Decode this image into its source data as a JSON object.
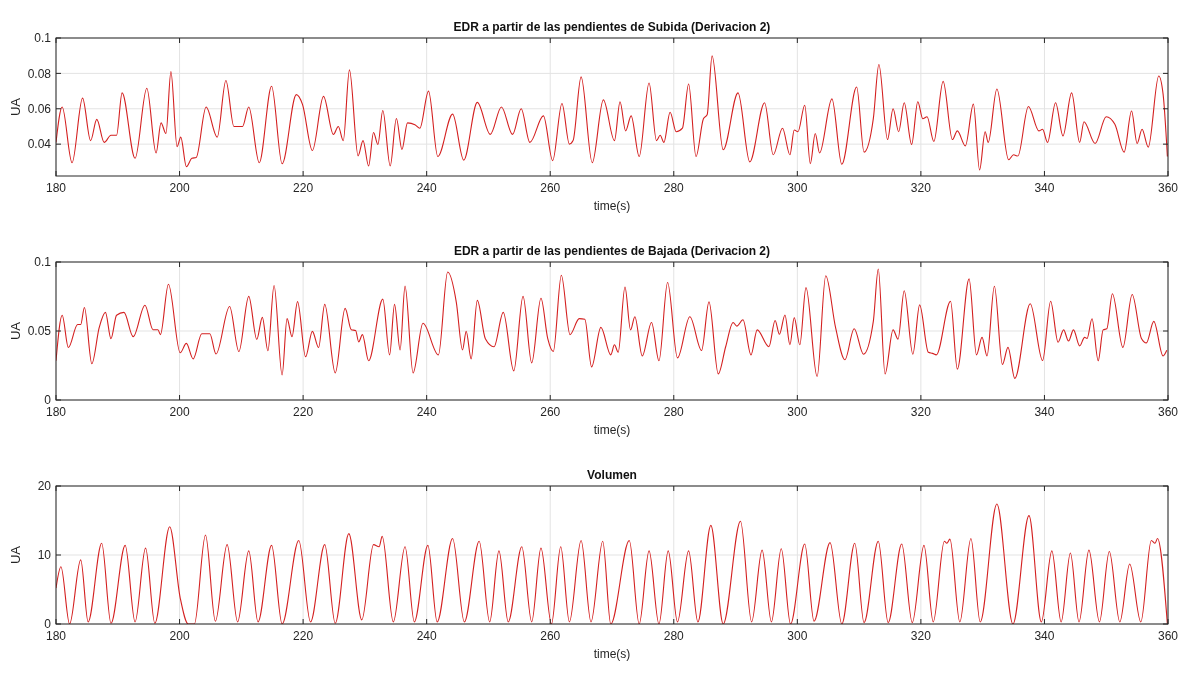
{
  "chart_data": [
    {
      "type": "line",
      "title": "EDR a partir de las pendientes de Subida (Derivacion 2)",
      "xlabel": "time(s)",
      "ylabel": "UA",
      "xlim": [
        180,
        360
      ],
      "xticks": [
        180,
        200,
        220,
        240,
        260,
        280,
        300,
        320,
        340,
        360
      ],
      "ylim": [
        0.022,
        0.1
      ],
      "yticks": [
        0.04,
        0.06,
        0.08,
        0.1
      ],
      "grid": true,
      "series": [
        {
          "color": "#d42020",
          "x": [
            180,
            181,
            182.6,
            184.3,
            185.6,
            186.6,
            187.8,
            188.9,
            189.8,
            190.7,
            192.8,
            194.7,
            196.2,
            197,
            197.8,
            198.6,
            199.6,
            200.2,
            201.1,
            202,
            202.7,
            204.3,
            206.1,
            207.5,
            208.8,
            210.2,
            211.2,
            212.9,
            214.9,
            216.6,
            218.9,
            219.9,
            221.5,
            223.3,
            224.9,
            225.7,
            226.5,
            227.5,
            228.9,
            229.7,
            230.6,
            231.4,
            232.1,
            232.9,
            234.1,
            235.1,
            236,
            236.9,
            238.1,
            238.9,
            240.3,
            241.8,
            244.2,
            246,
            248.2,
            250.3,
            252.1,
            253.9,
            255.3,
            256.7,
            258.9,
            260.4,
            261.9,
            263.1,
            263.7,
            265,
            266.8,
            268.6,
            270.4,
            271.3,
            272.2,
            273.1,
            274.4,
            276,
            277.2,
            277.8,
            278.4,
            279.4,
            280.4,
            281.4,
            282.4,
            283.6,
            284.8,
            285.4,
            286.2,
            287.2,
            288,
            288.7,
            290.4,
            292.3,
            294.7,
            296.1,
            297.6,
            298.8,
            299.5,
            300.1,
            301.2,
            302.1,
            302.9,
            303.6,
            305.6,
            307.2,
            309.6,
            310.8,
            312.3,
            313.2,
            314.6,
            315.5,
            316.4,
            317.3,
            318.5,
            319.5,
            320.3,
            321,
            322.1,
            323.6,
            325.1,
            325.9,
            327.2,
            328.5,
            329.5,
            330.4,
            330.9,
            332.3,
            334.2,
            335,
            335.7,
            337.4,
            339.1,
            339.7,
            340.5,
            341.8,
            343,
            344.4,
            345.7,
            346.4,
            348.2,
            350,
            351.4,
            352.9,
            354.1,
            355,
            355.8,
            356.8,
            358.5,
            359.2,
            359.9
          ],
          "values": [
            0.041,
            0.061,
            0.0295,
            0.066,
            0.042,
            0.054,
            0.041,
            0.045,
            0.045,
            0.069,
            0.032,
            0.0716,
            0.035,
            0.052,
            0.046,
            0.081,
            0.0386,
            0.044,
            0.0273,
            0.032,
            0.0325,
            0.061,
            0.044,
            0.076,
            0.05,
            0.05,
            0.061,
            0.0295,
            0.0727,
            0.0289,
            0.068,
            0.0625,
            0.0364,
            0.067,
            0.0455,
            0.05,
            0.042,
            0.082,
            0.0334,
            0.042,
            0.0277,
            0.0466,
            0.0398,
            0.059,
            0.0277,
            0.0545,
            0.037,
            0.052,
            0.051,
            0.049,
            0.07,
            0.033,
            0.057,
            0.031,
            0.0636,
            0.0455,
            0.061,
            0.0455,
            0.06,
            0.041,
            0.056,
            0.0307,
            0.063,
            0.04,
            0.042,
            0.078,
            0.0295,
            0.065,
            0.042,
            0.064,
            0.0475,
            0.056,
            0.033,
            0.0746,
            0.042,
            0.045,
            0.041,
            0.058,
            0.047,
            0.049,
            0.074,
            0.033,
            0.0544,
            0.0566,
            0.0899,
            null,
            0.0368,
            null,
            0.069,
            0.03,
            0.0634,
            0.034,
            0.049,
            0.034,
            0.048,
            0.047,
            0.062,
            0.029,
            0.046,
            0.035,
            0.0656,
            0.0286,
            0.0723,
            0.0355,
            0.0544,
            0.085,
            0.0426,
            0.06,
            0.047,
            0.0634,
            0.0398,
            0.064,
            0.0544,
            0.0555,
            0.0415,
            0.0755,
            0.0426,
            0.0475,
            0.039,
            0.0626,
            0.0254,
            0.047,
            0.041,
            0.0712,
            0.0312,
            0.034,
            0.0333,
            0.0613,
            0.0475,
            0.0484,
            0.041,
            0.0634,
            0.0447,
            0.069,
            0.041,
            0.0527,
            0.0404,
            0.0555,
            0.0512,
            0.0355,
            0.0587,
            0.0404,
            0.0484,
            0.0383,
            0.0785,
            0.0684,
            0.033
          ]
        }
      ]
    },
    {
      "type": "line",
      "title": "EDR a partir de las pendientes de Bajada (Derivacion 2)",
      "xlabel": "time(s)",
      "ylabel": "UA",
      "xlim": [
        180,
        360
      ],
      "xticks": [
        180,
        200,
        220,
        240,
        260,
        280,
        300,
        320,
        340,
        360
      ],
      "ylim": [
        0,
        0.1
      ],
      "yticks": [
        0,
        0.05,
        0.1
      ],
      "grid": true,
      "series": [
        {
          "color": "#d42020",
          "x": [
            180,
            181,
            182,
            183.5,
            184,
            184.6,
            185.8,
            187,
            188,
            188.9,
            189.8,
            191,
            192.5,
            194.4,
            195.7,
            196.5,
            196.9,
            198.2,
            200.1,
            201.1,
            202.2,
            203.6,
            204.9,
            205.9,
            208.1,
            209.6,
            211.2,
            212.5,
            213.4,
            214.3,
            215.3,
            216.6,
            217.4,
            218.2,
            219.1,
            220.4,
            221.5,
            222.5,
            223.5,
            225.2,
            226.8,
            227.8,
            228.5,
            229,
            229.6,
            230.6,
            232.9,
            234,
            234.8,
            235.7,
            236.5,
            237.8,
            239.4,
            241.9,
            243.4,
            244.8,
            245.8,
            246.4,
            247.2,
            248.2,
            249.5,
            250.9,
            252.4,
            254.1,
            255.6,
            257,
            258.5,
            259.6,
            260.5,
            261.8,
            263.2,
            264.7,
            265.6,
            266.7,
            268.2,
            269.8,
            270.4,
            271,
            272.1,
            273,
            273.7,
            274.9,
            276.4,
            277.6,
            279,
            280.6,
            282.6,
            284.5,
            285.7,
            287.2,
            288.4,
            289.6,
            290.2,
            291.2,
            292.5,
            293.5,
            295.4,
            296.4,
            297.1,
            298,
            298.8,
            299.5,
            300.4,
            301.4,
            303.2,
            304.6,
            306.2,
            307.7,
            309.2,
            310.7,
            312.3,
            313.1,
            314.2,
            315.5,
            316.3,
            317.3,
            318.7,
            319.8,
            321.2,
            321.9,
            322.5,
            324.8,
            325.9,
            327.8,
            329,
            329.9,
            330.7,
            331.9,
            333.2,
            334.1,
            335.2,
            337.7,
            339.7,
            341,
            342.2,
            343.1,
            343.9,
            344.7,
            345.7,
            346.5,
            346.9,
            347.7,
            348.7,
            349.5,
            350.1,
            351,
            352.7,
            354.2,
            355.7,
            356.5,
            357.7,
            359.2,
            359.8
          ],
          "values": [
            0.0284,
            0.0614,
            0.038,
            0.0547,
            0.0547,
            0.067,
            0.0263,
            0.0526,
            0.0635,
            0.0444,
            0.0614,
            0.0635,
            0.0459,
            0.0687,
            0.0509,
            0.0509,
            0.0474,
            0.0839,
            0.0342,
            0.041,
            0.0298,
            0.048,
            0.048,
            0.0333,
            0.0678,
            0.0351,
            0.0751,
            0.0439,
            0.0599,
            0.0357,
            0.083,
            0.0181,
            0.059,
            0.0459,
            0.0713,
            0.0313,
            0.0497,
            0.038,
            0.0693,
            0.0196,
            0.0664,
            0.0509,
            0.0503,
            0.0421,
            0.0474,
            0.0284,
            0.0731,
            0.0327,
            0.0693,
            0.0363,
            0.0825,
            0.0196,
            0.0556,
            0.0327,
            0.0927,
            0.0708,
            0.0363,
            0.0497,
            0.0298,
            0.0722,
            0.0444,
            0.0386,
            0.0635,
            0.0211,
            0.0751,
            0.0269,
            0.0737,
            0.0444,
            0.0351,
            0.0904,
            0.0474,
            0.059,
            0.0585,
            0.024,
            0.0526,
            0.0327,
            0.04,
            0.0346,
            0.0819,
            0.0508,
            0.0603,
            0.0319,
            0.0562,
            0.0284,
            0.0851,
            0.0305,
            0.0603,
            0.0359,
            0.0711,
            0.0189,
            0.0386,
            0.0562,
            0.0535,
            0.0581,
            0.0327,
            0.0508,
            0.0386,
            0.0576,
            0.0476,
            0.0616,
            0.04,
            0.0597,
            0.04,
            0.0814,
            0.017,
            0.09,
            0.0522,
            0.0292,
            0.0516,
            0.0332,
            0.057,
            0.0949,
            0.0189,
            0.0508,
            0.0441,
            0.0792,
            0.0332,
            0.0689,
            0.0346,
            0.0338,
            0.0327,
            0.0716,
            0.0224,
            0.0878,
            0.0327,
            0.0454,
            0.0319,
            0.0824,
            0.0257,
            0.0381,
            0.0157,
            0.0697,
            0.0286,
            0.0716,
            0.0419,
            0.0508,
            0.0427,
            0.0508,
            0.0392,
            0.0454,
            0.0446,
            0.0589,
            0.0284,
            0.0508,
            0.0516,
            0.077,
            0.0381,
            0.0765,
            0.0446,
            0.0414,
            0.057,
            0.0319,
            0.036
          ]
        }
      ]
    },
    {
      "type": "line",
      "title": "Volumen",
      "xlabel": "time(s)",
      "ylabel": "UA",
      "xlim": [
        180,
        360
      ],
      "xticks": [
        180,
        200,
        220,
        240,
        260,
        280,
        300,
        320,
        340,
        360
      ],
      "ylim": [
        0,
        20
      ],
      "yticks": [
        0,
        10,
        20
      ],
      "grid": true,
      "series": [
        {
          "color": "#d42020",
          "x": [
            180,
            180.8,
            182.2,
            184,
            185.2,
            187.4,
            188.9,
            191.2,
            192.8,
            194.5,
            196,
            198.4,
            200.1,
            201.4,
            202.4,
            204.2,
            205.8,
            207.7,
            209.4,
            211.2,
            212.7,
            214.9,
            216.6,
            219.3,
            221.2,
            223.5,
            225.2,
            227.4,
            229.5,
            231.4,
            232.3,
            232.8,
            234.6,
            236.5,
            238,
            240.2,
            241.7,
            244.2,
            246.1,
            248.5,
            250.2,
            251.7,
            253.2,
            255.4,
            257,
            258.5,
            260.2,
            261.7,
            263.1,
            265,
            266.6,
            268.5,
            269.8,
            272.8,
            274.4,
            276,
            277.6,
            279.1,
            280.6,
            282.4,
            283.9,
            286,
            288,
            290.8,
            292.6,
            294.3,
            295.8,
            297.4,
            298.9,
            301.2,
            302.7,
            305.3,
            307.2,
            309.3,
            310.8,
            313.1,
            314.7,
            316.9,
            318.6,
            320.5,
            322,
            323.8,
            324.2,
            324.7,
            326.3,
            328.1,
            329.6,
            332.3,
            334.9,
            337.5,
            339.5,
            341.2,
            342.7,
            344.2,
            345.6,
            347.2,
            348.9,
            350.5,
            352.2,
            353.8,
            355.6,
            357.3,
            357.9,
            358.3,
            359.9
          ],
          "values": [
            5.2,
            8.3,
            0,
            9.3,
            0.3,
            11.7,
            0.1,
            11.4,
            0.3,
            11,
            0.1,
            14.1,
            3.8,
            0,
            0,
            12.9,
            0.4,
            11.5,
            0.3,
            10.6,
            0.3,
            11.4,
            0,
            12.1,
            0.3,
            11.5,
            0.1,
            13.1,
            0.6,
            11.5,
            11.2,
            12.7,
            0.3,
            11.2,
            0.3,
            11.4,
            0.3,
            12.4,
            0.3,
            12,
            0.3,
            10.6,
            0.3,
            11.2,
            0.3,
            11,
            0,
            11.2,
            0.3,
            12.1,
            0.3,
            12,
            0,
            12.1,
            0,
            10.6,
            0,
            10.6,
            0.3,
            10.6,
            0.3,
            14.3,
            0,
            14.9,
            0.3,
            10.7,
            0.3,
            10.9,
            0,
            11.6,
            0.4,
            11.8,
            0,
            11.7,
            0.2,
            12,
            0.2,
            11.6,
            0.2,
            11.4,
            0.3,
            12,
            11.7,
            12.3,
            0.3,
            12.4,
            0.3,
            17.4,
            0,
            15.7,
            0.3,
            10.6,
            0.3,
            10.3,
            0.3,
            10.7,
            0.3,
            10.5,
            0.3,
            8.7,
            0.3,
            12.1,
            11.7,
            12.4,
            0
          ]
        }
      ]
    }
  ]
}
